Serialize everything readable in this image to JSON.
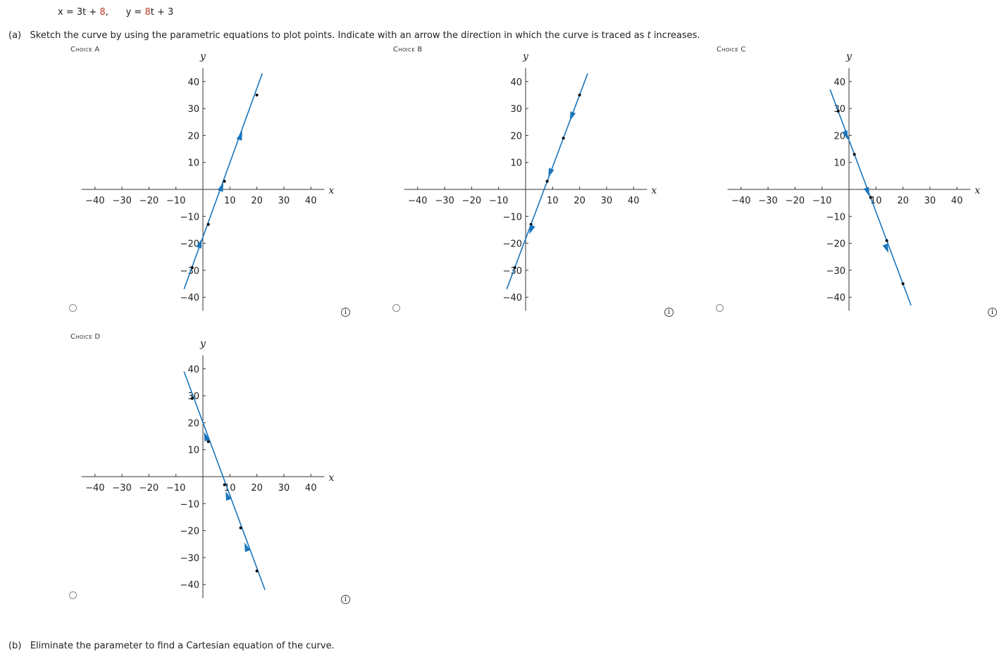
{
  "header": {
    "eq_x_prefix": "x = 3t + ",
    "eq_x_const": "8",
    "eq_y_prefix": "y = ",
    "eq_y_coef": "8",
    "eq_y_suffix": "t + 3"
  },
  "part_a": {
    "label": "(a)",
    "text_before": "Sketch the curve by using the parametric equations to plot points. Indicate with an arrow the direction in which the curve is traced as ",
    "t_var": "t",
    "text_after": " increases."
  },
  "part_b": {
    "label": "(b)",
    "text": "Eliminate the parameter to find a Cartesian equation of the curve."
  },
  "info_icon_glyph": "i",
  "colors": {
    "curve": "#1a75bb",
    "axis": "#333333",
    "point": "#000000"
  },
  "chart_data": [
    {
      "id": "A",
      "choice_label": "Choice A",
      "type": "line",
      "xlabel": "x",
      "ylabel": "y",
      "xlim": [
        -45,
        45
      ],
      "ylim": [
        -45,
        45
      ],
      "xticks": [
        -40,
        -30,
        -20,
        -10,
        10,
        20,
        30,
        40
      ],
      "yticks": [
        -40,
        -30,
        -20,
        -10,
        10,
        20,
        30,
        40
      ],
      "line": [
        [
          -7,
          -37
        ],
        [
          22,
          43
        ]
      ],
      "points": [
        [
          -4,
          -29
        ],
        [
          -1,
          -21
        ],
        [
          2,
          -13
        ],
        [
          8,
          3
        ],
        [
          14,
          20
        ],
        [
          20,
          35
        ]
      ],
      "arrows": [
        [
          -1,
          -20,
          "up"
        ],
        [
          7,
          1,
          "up"
        ],
        [
          14,
          20,
          "up"
        ]
      ]
    },
    {
      "id": "B",
      "choice_label": "Choice B",
      "type": "line",
      "xlabel": "x",
      "ylabel": "y",
      "xlim": [
        -45,
        45
      ],
      "ylim": [
        -45,
        45
      ],
      "xticks": [
        -40,
        -30,
        -20,
        -10,
        10,
        20,
        30,
        40
      ],
      "yticks": [
        -40,
        -30,
        -20,
        -10,
        10,
        20,
        30,
        40
      ],
      "line": [
        [
          -7,
          -37
        ],
        [
          23,
          43
        ]
      ],
      "points": [
        [
          -4,
          -29
        ],
        [
          2,
          -13
        ],
        [
          8,
          3
        ],
        [
          14,
          19
        ],
        [
          20,
          35
        ]
      ],
      "arrows": [
        [
          17,
          27,
          "down"
        ],
        [
          9,
          6,
          "down"
        ],
        [
          2,
          -15,
          "down"
        ]
      ]
    },
    {
      "id": "C",
      "choice_label": "Choice C",
      "type": "line",
      "xlabel": "x",
      "ylabel": "y",
      "xlim": [
        -45,
        45
      ],
      "ylim": [
        -45,
        45
      ],
      "xticks": [
        -40,
        -30,
        -20,
        -10,
        10,
        20,
        30,
        40
      ],
      "yticks": [
        -40,
        -30,
        -20,
        -10,
        10,
        20,
        30,
        40
      ],
      "line": [
        [
          -7,
          37
        ],
        [
          23,
          -43
        ]
      ],
      "points": [
        [
          -4,
          29
        ],
        [
          2,
          13
        ],
        [
          8,
          -3
        ],
        [
          14,
          -19
        ],
        [
          20,
          -35
        ]
      ],
      "arrows": [
        [
          -1,
          20,
          "down"
        ],
        [
          7,
          -1,
          "down"
        ],
        [
          14,
          -22,
          "down"
        ]
      ]
    },
    {
      "id": "D",
      "choice_label": "Choice D",
      "type": "line",
      "xlabel": "x",
      "ylabel": "y",
      "xlim": [
        -45,
        45
      ],
      "ylim": [
        -45,
        45
      ],
      "xticks": [
        -40,
        -30,
        -20,
        -10,
        10,
        20,
        30,
        40
      ],
      "yticks": [
        -40,
        -30,
        -20,
        -10,
        10,
        20,
        30,
        40
      ],
      "line": [
        [
          -7,
          39
        ],
        [
          23,
          -42
        ]
      ],
      "points": [
        [
          -4,
          29
        ],
        [
          2,
          13
        ],
        [
          8,
          -3
        ],
        [
          14,
          -19
        ],
        [
          20,
          -35
        ]
      ],
      "arrows": [
        [
          1,
          15,
          "up"
        ],
        [
          9,
          -7,
          "up"
        ],
        [
          16,
          -26,
          "up"
        ]
      ]
    }
  ]
}
